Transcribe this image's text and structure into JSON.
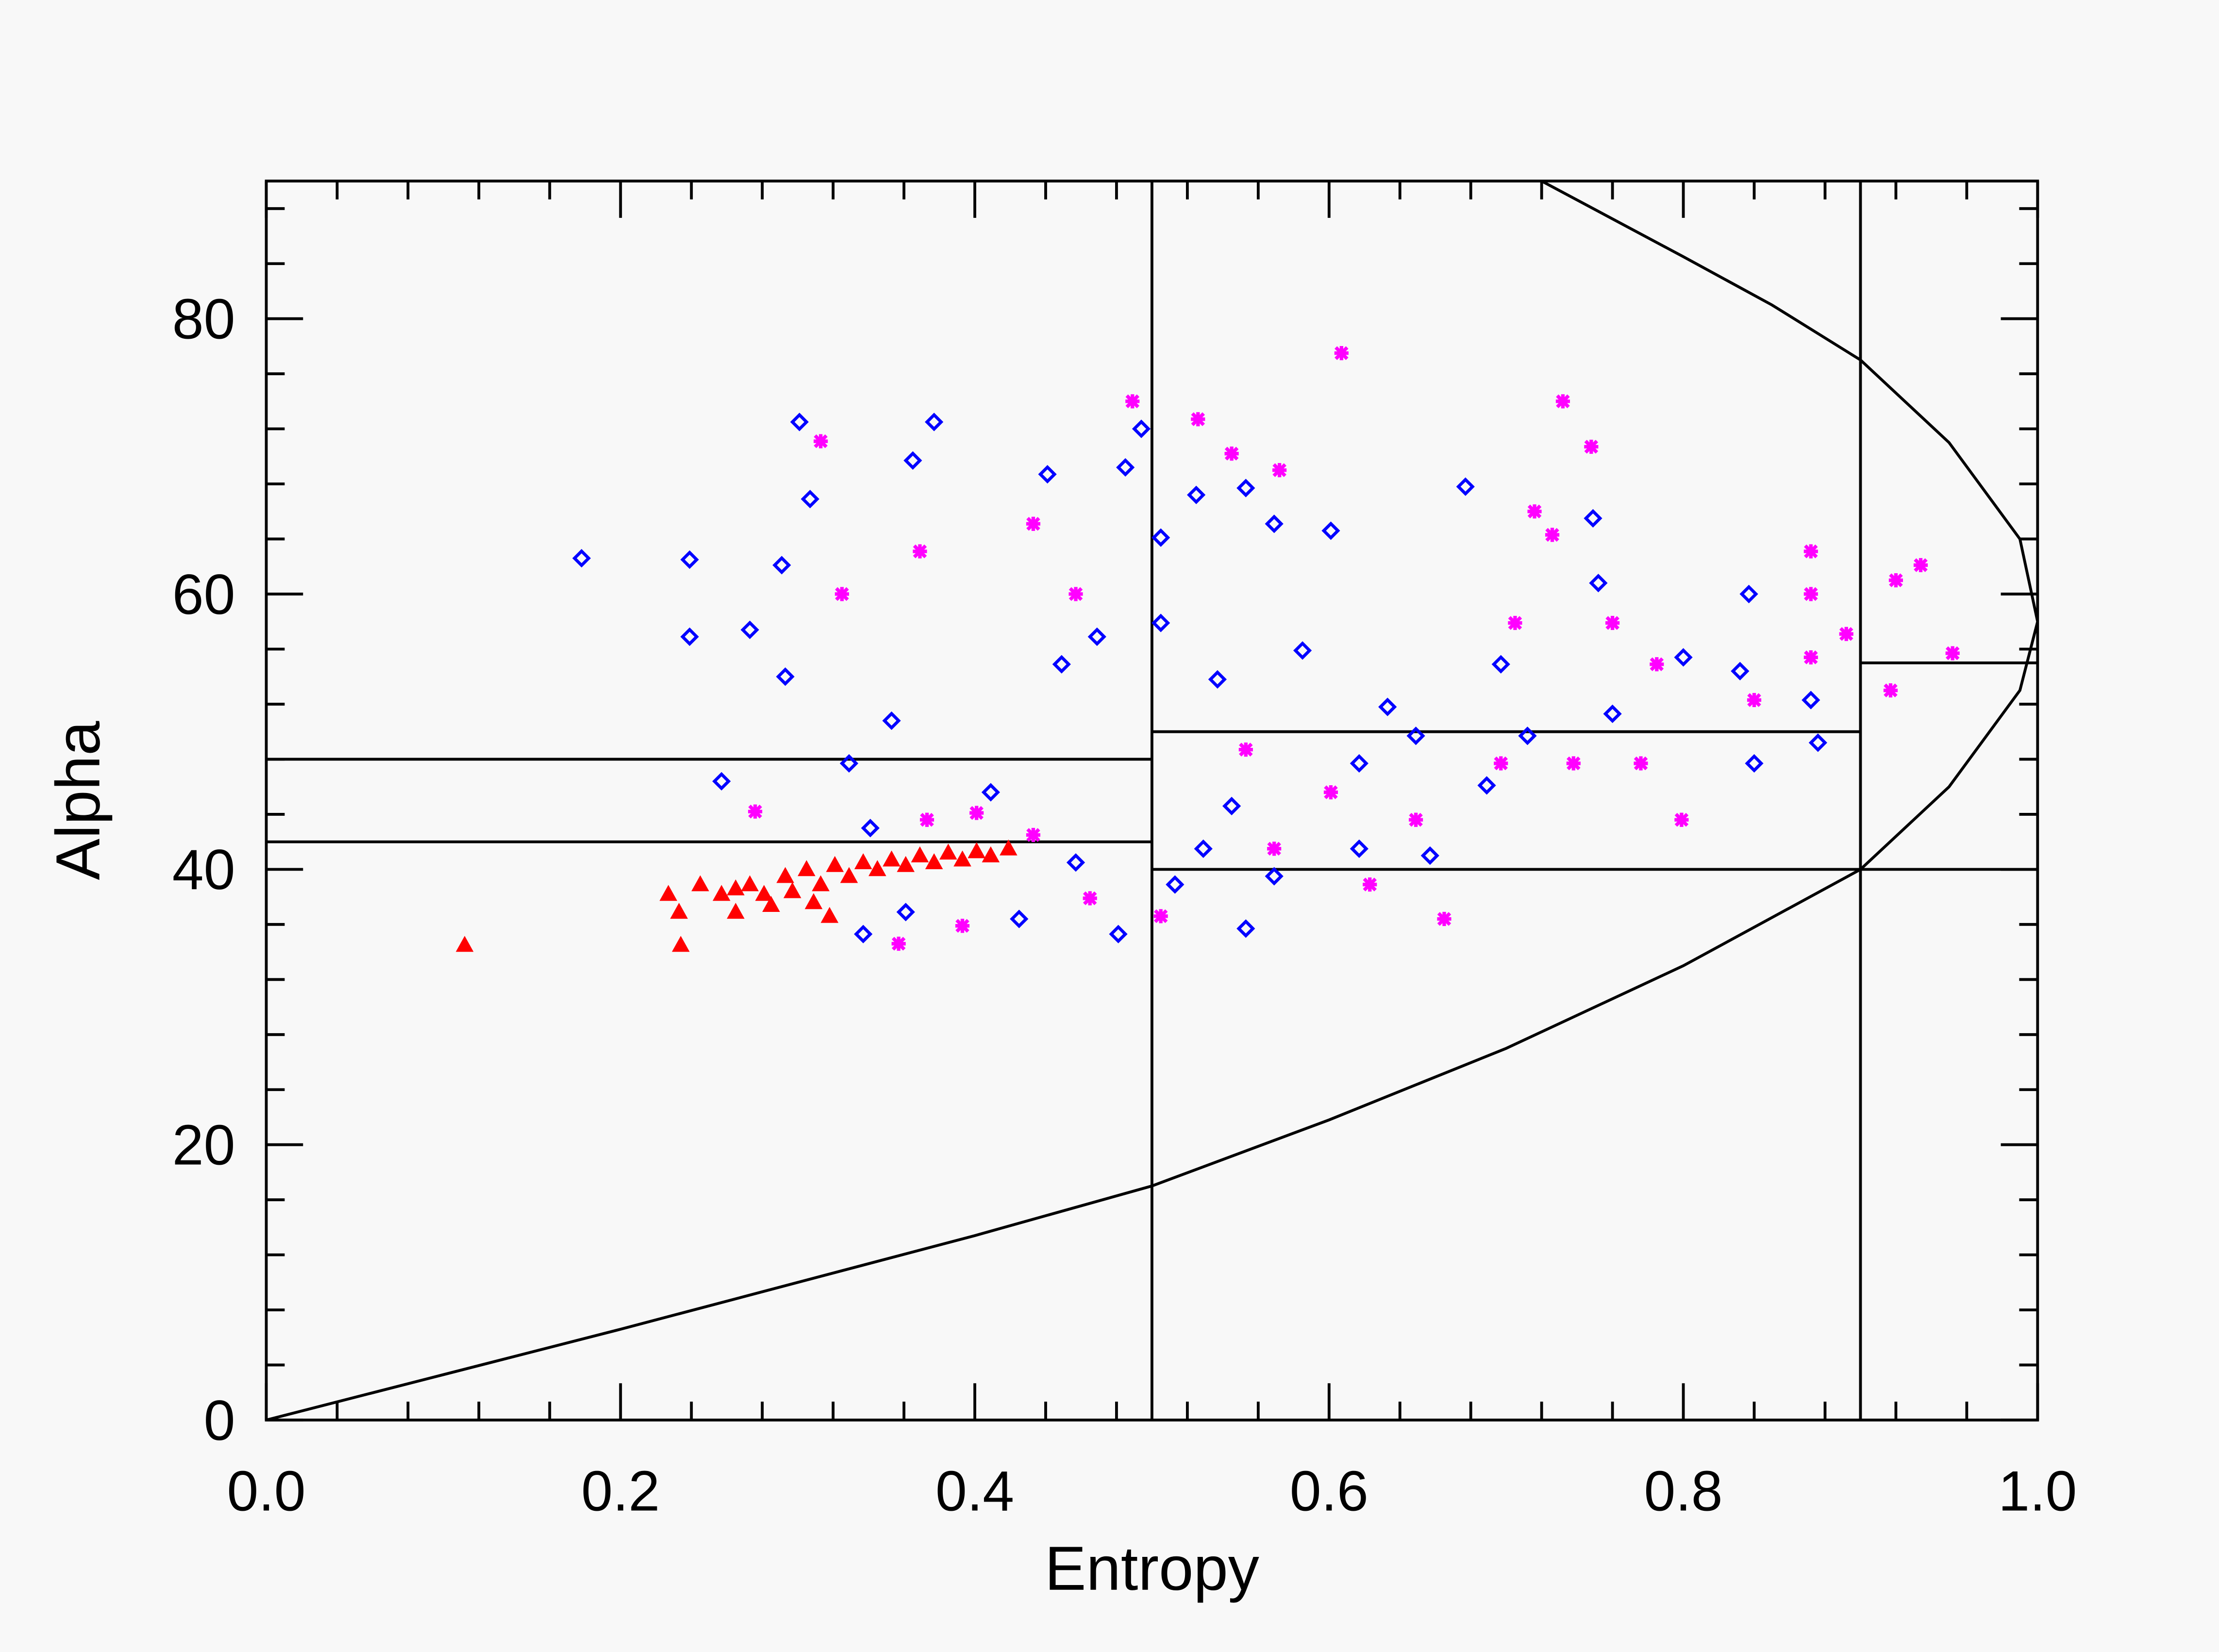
{
  "chart_data": {
    "type": "scatter",
    "xlabel": "Entropy",
    "ylabel": "Alpha",
    "xlim": [
      0,
      1
    ],
    "ylim": [
      0,
      90
    ],
    "xticks": [
      {
        "value": 0,
        "label": "0.0"
      },
      0.2,
      0.4,
      0.6,
      0.8,
      {
        "value": 1,
        "label": "1.0"
      }
    ],
    "yticks": [
      0,
      20,
      40,
      60,
      80
    ],
    "xminorticks": [
      0.04,
      0.08,
      0.12,
      0.16,
      0.24,
      0.28,
      0.32,
      0.36,
      0.44,
      0.48,
      0.52,
      0.56,
      0.64,
      0.68,
      0.72,
      0.76,
      0.84,
      0.88,
      0.92,
      0.96
    ],
    "yminorticks": [
      4,
      8,
      12,
      16,
      24,
      28,
      32,
      36,
      44,
      48,
      52,
      56,
      64,
      68,
      72,
      76,
      84,
      88
    ],
    "zone_lines": [
      {
        "x": [
          0.5,
          0.5
        ],
        "y": [
          0,
          90
        ]
      },
      {
        "x": [
          0.9,
          0.9
        ],
        "y": [
          0,
          90
        ]
      },
      {
        "x": [
          0,
          0.5
        ],
        "y": [
          48,
          48
        ]
      },
      {
        "x": [
          0,
          0.5
        ],
        "y": [
          42,
          42
        ]
      },
      {
        "x": [
          0.5,
          0.9
        ],
        "y": [
          50,
          50
        ]
      },
      {
        "x": [
          0.5,
          1
        ],
        "y": [
          40,
          40
        ]
      },
      {
        "x": [
          0.9,
          1
        ],
        "y": [
          55,
          55
        ]
      }
    ],
    "boundary": {
      "x": [
        0,
        0.1,
        0.2,
        0.3,
        0.4,
        0.5,
        0.6,
        0.7,
        0.8,
        0.9,
        0.95,
        0.99,
        1,
        0.99,
        0.95,
        0.9,
        0.85,
        0.8,
        0.72
      ],
      "y": [
        0,
        3.3,
        6.6,
        10,
        13.4,
        17,
        21.8,
        27,
        33,
        40,
        46,
        53,
        58,
        64,
        71,
        77,
        81,
        84.5,
        90
      ]
    },
    "series": [
      {
        "color": "#0000ff",
        "marker": "diamond",
        "x": [
          0.178,
          0.239,
          0.239,
          0.301,
          0.377,
          0.365,
          0.307,
          0.291,
          0.273,
          0.257,
          0.293,
          0.329,
          0.341,
          0.353,
          0.441,
          0.485,
          0.494,
          0.505,
          0.525,
          0.553,
          0.569,
          0.601,
          0.677,
          0.749,
          0.752,
          0.837,
          0.832,
          0.872,
          0.876,
          0.84,
          0.76,
          0.712,
          0.689,
          0.657,
          0.617,
          0.569,
          0.553,
          0.513,
          0.481,
          0.425,
          0.361,
          0.337,
          0.409,
          0.449,
          0.469,
          0.505,
          0.537,
          0.585,
          0.633,
          0.649,
          0.697,
          0.617,
          0.545,
          0.529,
          0.457,
          0.8
        ],
        "y": [
          62.6,
          62.5,
          56.9,
          72.5,
          72.5,
          69.7,
          66.9,
          62.1,
          57.4,
          46.4,
          54,
          47.7,
          43,
          50.8,
          68.7,
          69.2,
          72,
          64.1,
          67.2,
          67.7,
          65.1,
          64.6,
          67.8,
          65.5,
          60.8,
          60,
          54.4,
          52.3,
          49.2,
          47.7,
          51.3,
          49.7,
          46.1,
          41,
          41.5,
          39.5,
          35.7,
          38.9,
          35.3,
          36.4,
          36.9,
          35.3,
          45.6,
          54.9,
          56.9,
          57.9,
          53.8,
          55.9,
          51.8,
          49.7,
          54.9,
          47.7,
          44.6,
          41.5,
          40.5,
          55.4
        ]
      },
      {
        "color": "#ff00ff",
        "marker": "asterisk",
        "x": [
          0.313,
          0.489,
          0.526,
          0.607,
          0.732,
          0.748,
          0.545,
          0.572,
          0.325,
          0.457,
          0.716,
          0.726,
          0.872,
          0.92,
          0.934,
          0.952,
          0.917,
          0.892,
          0.872,
          0.785,
          0.776,
          0.799,
          0.738,
          0.697,
          0.649,
          0.623,
          0.569,
          0.505,
          0.465,
          0.433,
          0.401,
          0.373,
          0.276,
          0.357,
          0.393,
          0.872,
          0.84,
          0.665,
          0.601,
          0.553,
          0.705,
          0.76,
          0.433,
          0.369
        ],
        "y": [
          71.1,
          74,
          72.7,
          77.5,
          74,
          70.7,
          70.2,
          69,
          60,
          60,
          66,
          64.3,
          63.1,
          61,
          62.1,
          55.7,
          53,
          57.1,
          60,
          54.9,
          47.7,
          43.6,
          47.7,
          47.7,
          43.6,
          38.9,
          41.5,
          36.6,
          37.9,
          42.5,
          44.1,
          43.6,
          44.2,
          34.6,
          35.9,
          55.4,
          52.3,
          36.4,
          45.6,
          48.7,
          57.9,
          57.9,
          65.1,
          63.1
        ]
      },
      {
        "color": "#ff0000",
        "marker": "triangle",
        "x": [
          0.112,
          0.234,
          0.227,
          0.233,
          0.245,
          0.257,
          0.265,
          0.273,
          0.285,
          0.293,
          0.297,
          0.305,
          0.313,
          0.321,
          0.329,
          0.337,
          0.345,
          0.353,
          0.361,
          0.369,
          0.377,
          0.385,
          0.393,
          0.401,
          0.409,
          0.419,
          0.318,
          0.265,
          0.281,
          0.309
        ],
        "y": [
          34.5,
          34.5,
          38.2,
          36.9,
          38.9,
          38.2,
          38.6,
          38.9,
          37.4,
          39.5,
          38.4,
          40,
          38.9,
          40.3,
          39.5,
          40.5,
          40,
          40.7,
          40.3,
          41,
          40.5,
          41.2,
          40.7,
          41.3,
          41,
          41.5,
          36.6,
          36.9,
          38.2,
          37.6
        ]
      }
    ]
  }
}
